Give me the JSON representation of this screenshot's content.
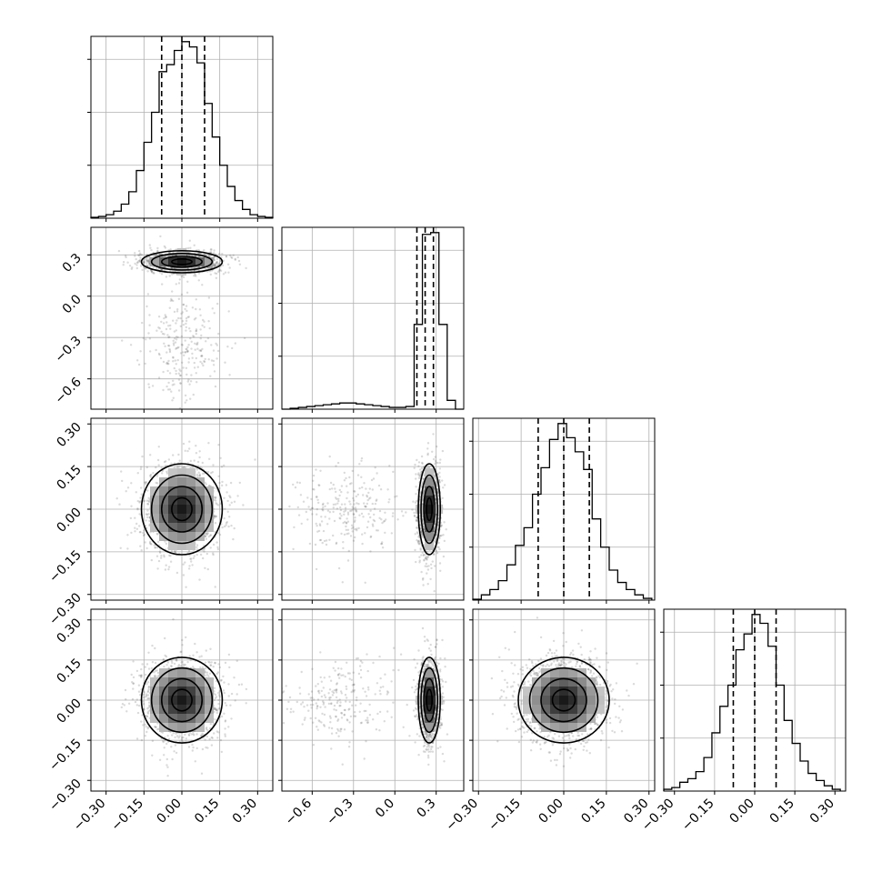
{
  "chart_data": {
    "type": "corner",
    "grid": true,
    "parameters": [
      {
        "id": "p0",
        "mean": 0.0,
        "std": 0.08,
        "mode_mix": null
      },
      {
        "id": "p1",
        "mean": 0.25,
        "std": 0.04,
        "mode_mix": {
          "weight": 0.18,
          "mean": -0.35,
          "std": 0.2
        }
      },
      {
        "id": "p2",
        "mean": 0.0,
        "std": 0.08,
        "mode_mix": null
      },
      {
        "id": "p3",
        "mean": 0.0,
        "std": 0.08,
        "mode_mix": null
      }
    ],
    "ranges": [
      [
        -0.36,
        0.36
      ],
      [
        -0.82,
        0.5
      ],
      [
        -0.32,
        0.32
      ],
      [
        -0.34,
        0.34
      ]
    ],
    "quantiles": [
      [
        -0.08,
        0.0,
        0.09
      ],
      [
        0.16,
        0.22,
        0.28
      ],
      [
        -0.09,
        0.0,
        0.09
      ],
      [
        -0.08,
        0.0,
        0.08
      ]
    ],
    "ticks": [
      {
        "values": [
          -0.3,
          -0.15,
          0.0,
          0.15,
          0.3
        ],
        "labels": [
          "−0.30",
          "−0.15",
          "0.00",
          "0.15",
          "0.30"
        ]
      },
      {
        "values": [
          -0.6,
          -0.3,
          0.0,
          0.3
        ],
        "labels": [
          "−0.6",
          "−0.3",
          "0.0",
          "0.3"
        ]
      },
      {
        "values": [
          -0.3,
          -0.15,
          0.0,
          0.15,
          0.3
        ],
        "labels": [
          "−0.30",
          "−0.15",
          "0.00",
          "0.15",
          "0.30"
        ]
      },
      {
        "values": [
          -0.3,
          -0.15,
          0.0,
          0.15,
          0.3
        ],
        "labels": [
          "−0.30",
          "−0.15",
          "0.00",
          "0.15",
          "0.30"
        ]
      }
    ],
    "diagonal_histograms": [
      {
        "bins": [
          -0.36,
          -0.33,
          -0.3,
          -0.27,
          -0.24,
          -0.21,
          -0.18,
          -0.15,
          -0.12,
          -0.09,
          -0.06,
          -0.03,
          0.0,
          0.03,
          0.06,
          0.09,
          0.12,
          0.15,
          0.18,
          0.21,
          0.24,
          0.27,
          0.3,
          0.33,
          0.36
        ],
        "counts": [
          0.005,
          0.01,
          0.02,
          0.04,
          0.08,
          0.15,
          0.27,
          0.43,
          0.6,
          0.83,
          0.87,
          0.95,
          1.0,
          0.97,
          0.88,
          0.65,
          0.46,
          0.3,
          0.18,
          0.1,
          0.05,
          0.02,
          0.01,
          0.005
        ]
      },
      {
        "bins": [
          -0.82,
          -0.76,
          -0.7,
          -0.64,
          -0.58,
          -0.52,
          -0.46,
          -0.4,
          -0.34,
          -0.28,
          -0.22,
          -0.16,
          -0.1,
          -0.04,
          0.02,
          0.08,
          0.14,
          0.2,
          0.26,
          0.32,
          0.38,
          0.44,
          0.5
        ],
        "counts": [
          0.0,
          0.005,
          0.01,
          0.015,
          0.02,
          0.025,
          0.03,
          0.035,
          0.035,
          0.03,
          0.025,
          0.02,
          0.015,
          0.01,
          0.01,
          0.015,
          0.48,
          0.99,
          1.0,
          0.48,
          0.05,
          0.0
        ]
      },
      {
        "bins": [
          -0.32,
          -0.29,
          -0.26,
          -0.23,
          -0.2,
          -0.17,
          -0.14,
          -0.11,
          -0.08,
          -0.05,
          -0.02,
          0.01,
          0.04,
          0.07,
          0.1,
          0.13,
          0.16,
          0.19,
          0.22,
          0.25,
          0.28,
          0.31
        ],
        "counts": [
          0.005,
          0.03,
          0.06,
          0.11,
          0.2,
          0.31,
          0.41,
          0.6,
          0.75,
          0.91,
          1.0,
          0.92,
          0.84,
          0.74,
          0.46,
          0.3,
          0.17,
          0.1,
          0.06,
          0.03,
          0.01
        ]
      },
      {
        "bins": [
          -0.34,
          -0.31,
          -0.28,
          -0.25,
          -0.22,
          -0.19,
          -0.16,
          -0.13,
          -0.1,
          -0.07,
          -0.04,
          -0.01,
          0.02,
          0.05,
          0.08,
          0.11,
          0.14,
          0.17,
          0.2,
          0.23,
          0.26,
          0.29,
          0.32
        ],
        "counts": [
          0.01,
          0.02,
          0.05,
          0.07,
          0.11,
          0.19,
          0.33,
          0.48,
          0.6,
          0.8,
          0.89,
          1.0,
          0.95,
          0.82,
          0.6,
          0.4,
          0.27,
          0.17,
          0.1,
          0.06,
          0.03,
          0.01
        ]
      }
    ],
    "offdiagonal_panels": [
      {
        "x_param": 0,
        "y_param": 1,
        "scatter": true,
        "density_bins": true,
        "contours": 3
      },
      {
        "x_param": 0,
        "y_param": 2,
        "scatter": true,
        "density_bins": true,
        "contours": 3
      },
      {
        "x_param": 1,
        "y_param": 2,
        "scatter": true,
        "density_bins": true,
        "contours": 3
      },
      {
        "x_param": 0,
        "y_param": 3,
        "scatter": true,
        "density_bins": true,
        "contours": 3
      },
      {
        "x_param": 1,
        "y_param": 3,
        "scatter": true,
        "density_bins": true,
        "contours": 3
      },
      {
        "x_param": 2,
        "y_param": 3,
        "scatter": true,
        "density_bins": true,
        "contours": 3
      }
    ],
    "colors": {
      "line": "#000000",
      "grid": "#b0b0b0",
      "scatter": "#555555"
    }
  }
}
